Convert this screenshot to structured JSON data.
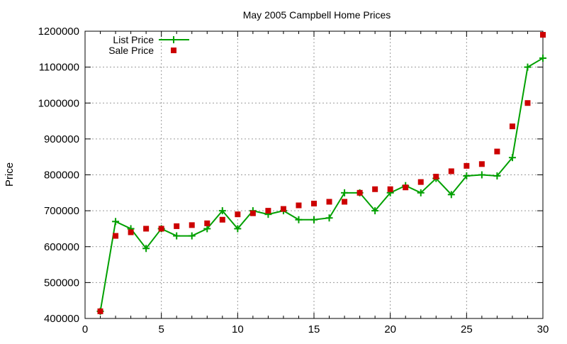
{
  "chart_data": {
    "type": "line",
    "title": "May 2005 Campbell Home Prices",
    "xlabel": "",
    "ylabel": "Price",
    "xlim": [
      0,
      30
    ],
    "ylim": [
      400000,
      1200000
    ],
    "xticks": [
      0,
      5,
      10,
      15,
      20,
      25,
      30
    ],
    "yticks": [
      400000,
      500000,
      600000,
      700000,
      800000,
      900000,
      1000000,
      1100000,
      1200000
    ],
    "grid": true,
    "legend_position": "top-left",
    "series": [
      {
        "name": "List Price",
        "style": "line-with-plus-markers",
        "color": "#00a000",
        "x": [
          1,
          2,
          3,
          4,
          5,
          6,
          7,
          8,
          9,
          10,
          11,
          12,
          13,
          14,
          15,
          16,
          17,
          18,
          19,
          20,
          21,
          22,
          23,
          24,
          25,
          26,
          27,
          28,
          29,
          30
        ],
        "values": [
          420000,
          670000,
          650000,
          595000,
          650000,
          630000,
          630000,
          650000,
          700000,
          650000,
          700000,
          690000,
          700000,
          675000,
          675000,
          680000,
          750000,
          750000,
          700000,
          750000,
          770000,
          750000,
          790000,
          745000,
          797000,
          800000,
          797000,
          848000,
          1100000,
          1125000
        ]
      },
      {
        "name": "Sale Price",
        "style": "square-markers",
        "color": "#cc0000",
        "x": [
          1,
          2,
          3,
          4,
          5,
          6,
          7,
          8,
          9,
          10,
          11,
          12,
          13,
          14,
          15,
          16,
          17,
          18,
          19,
          20,
          21,
          22,
          23,
          24,
          25,
          26,
          27,
          28,
          29,
          30
        ],
        "values": [
          420000,
          630000,
          640000,
          650000,
          650000,
          657000,
          660000,
          665000,
          675000,
          690000,
          693000,
          700000,
          705000,
          715000,
          720000,
          725000,
          725000,
          750000,
          760000,
          760000,
          765000,
          780000,
          795000,
          810000,
          825000,
          830000,
          865000,
          935000,
          1000000,
          1190000
        ]
      }
    ]
  }
}
